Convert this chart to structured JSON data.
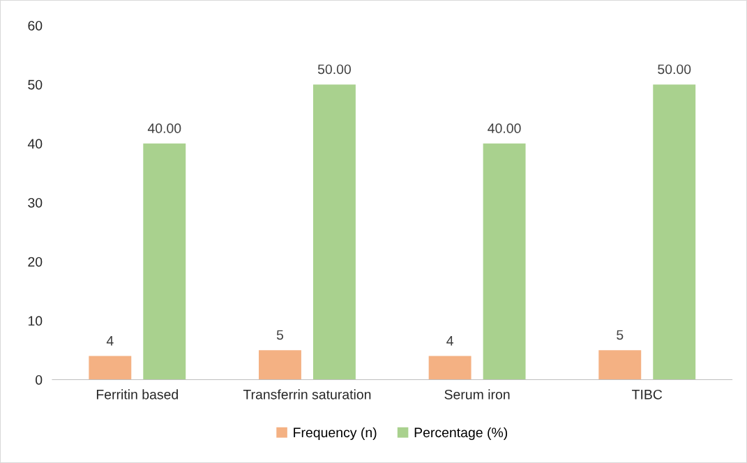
{
  "chart_data": {
    "type": "bar",
    "categories": [
      "Ferritin based",
      "Transferrin saturation",
      "Serum iron",
      "TIBC"
    ],
    "series": [
      {
        "name": "Frequency (n)",
        "color": "#f4b183",
        "values": [
          4,
          5,
          4,
          5
        ],
        "value_labels": [
          "4",
          "5",
          "4",
          "5"
        ]
      },
      {
        "name": "Percentage (%)",
        "color": "#a9d18e",
        "values": [
          40,
          50,
          40,
          50
        ],
        "value_labels": [
          "40.00",
          "50.00",
          "40.00",
          "50.00"
        ]
      }
    ],
    "ylim": [
      0,
      60
    ],
    "yticks": [
      0,
      10,
      20,
      30,
      40,
      50,
      60
    ],
    "grid": false,
    "legend": "bottom"
  }
}
